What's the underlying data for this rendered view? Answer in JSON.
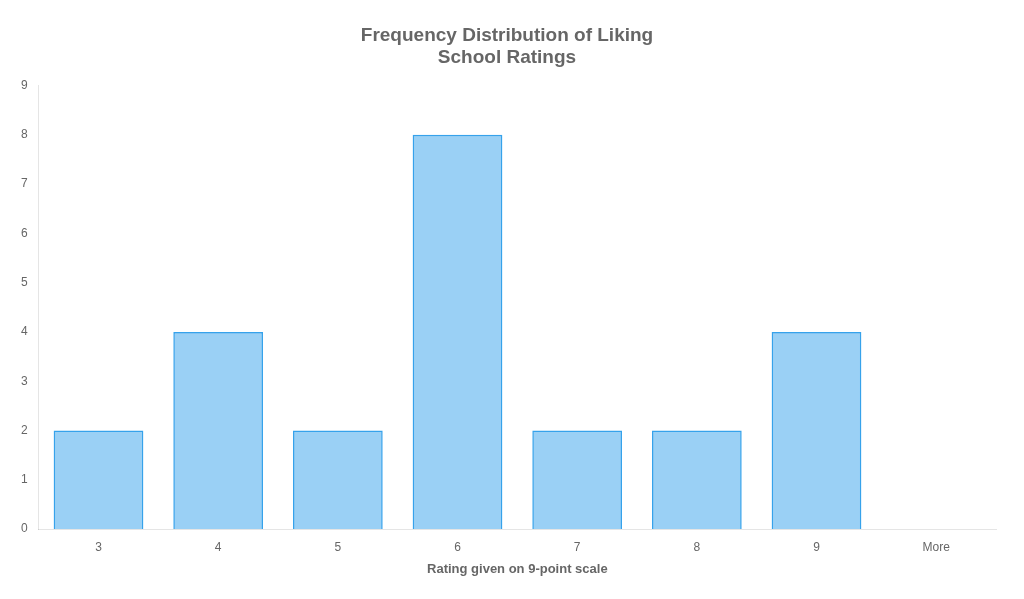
{
  "chart_data": {
    "type": "bar",
    "title": "Frequency Distribution of Liking\nSchool Ratings",
    "xlabel": "Rating given on 9-point scale",
    "categories": [
      "3",
      "4",
      "5",
      "6",
      "7",
      "8",
      "9",
      "More"
    ],
    "values": [
      2,
      4,
      2,
      8,
      2,
      2,
      4,
      0
    ],
    "ylim": [
      0,
      9
    ],
    "yticks": [
      0,
      1,
      2,
      3,
      4,
      5,
      6,
      7,
      8,
      9
    ],
    "grid": false
  }
}
